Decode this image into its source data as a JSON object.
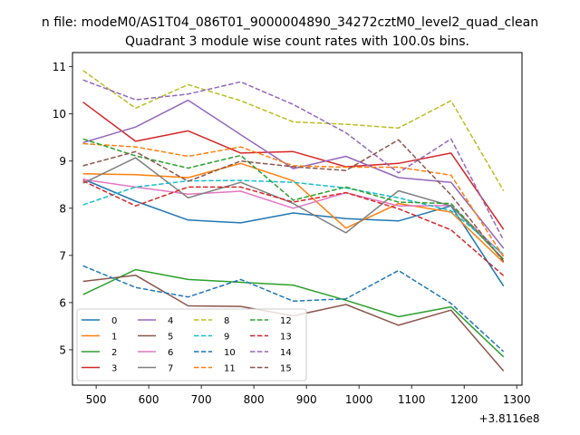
{
  "chart_data": {
    "type": "line",
    "suptitle": "n file: modeM0/AS1T04_086T01_9000004890_34272cztM0_level2_quad_clean",
    "title": "Quadrant 3 module wise count rates with 100.0s bins.",
    "xlabel": "",
    "ylabel": "",
    "x_offset_label": "+3.8116e8",
    "xlim": [
      455,
      1310
    ],
    "ylim": [
      4.25,
      11.3
    ],
    "xticks": [
      500,
      600,
      700,
      800,
      900,
      1000,
      1100,
      1200,
      1300
    ],
    "yticks": [
      5,
      6,
      7,
      8,
      9,
      10,
      11
    ],
    "x": [
      475,
      575,
      675,
      775,
      875,
      975,
      1075,
      1175,
      1275
    ],
    "legend_position": "lower-left",
    "series": [
      {
        "name": "0",
        "color": "#1f77b4",
        "dash": "solid",
        "values": [
          8.62,
          8.15,
          7.75,
          7.69,
          7.9,
          7.78,
          7.73,
          8.05,
          6.35
        ]
      },
      {
        "name": "1",
        "color": "#ff7f0e",
        "dash": "solid",
        "values": [
          8.73,
          8.71,
          8.65,
          8.95,
          8.58,
          7.58,
          8.1,
          7.92,
          6.85
        ]
      },
      {
        "name": "2",
        "color": "#2ca02c",
        "dash": "solid",
        "values": [
          6.17,
          6.7,
          6.49,
          6.43,
          6.37,
          6.05,
          5.7,
          5.91,
          4.85
        ]
      },
      {
        "name": "3",
        "color": "#d62728",
        "dash": "solid",
        "values": [
          10.25,
          9.42,
          9.64,
          9.17,
          9.2,
          8.88,
          8.95,
          9.17,
          7.55
        ]
      },
      {
        "name": "4",
        "color": "#9467bd",
        "dash": "solid",
        "values": [
          9.39,
          9.72,
          10.29,
          9.56,
          8.84,
          9.1,
          8.65,
          8.55,
          7.15
        ]
      },
      {
        "name": "5",
        "color": "#8c564b",
        "dash": "solid",
        "values": [
          6.45,
          6.58,
          5.93,
          5.92,
          5.72,
          5.96,
          5.52,
          5.84,
          4.55
        ]
      },
      {
        "name": "6",
        "color": "#e377c2",
        "dash": "solid",
        "values": [
          8.61,
          8.45,
          8.3,
          8.36,
          8.0,
          8.33,
          8.05,
          8.06,
          7.0
        ]
      },
      {
        "name": "7",
        "color": "#7f7f7f",
        "dash": "solid",
        "values": [
          8.53,
          9.07,
          8.22,
          8.55,
          8.1,
          7.48,
          8.37,
          8.05,
          6.92
        ]
      },
      {
        "name": "8",
        "color": "#bcbd22",
        "dash": "dashed",
        "values": [
          10.92,
          10.12,
          10.62,
          10.28,
          9.83,
          9.78,
          9.7,
          10.28,
          8.37
        ]
      },
      {
        "name": "9",
        "color": "#17becf",
        "dash": "dashed",
        "values": [
          8.07,
          8.45,
          8.58,
          8.59,
          8.55,
          8.43,
          8.22,
          7.95,
          7.02
        ]
      },
      {
        "name": "10",
        "color": "#1f77b4",
        "dash": "dashed",
        "values": [
          6.78,
          6.32,
          6.12,
          6.49,
          6.03,
          6.08,
          6.68,
          5.98,
          4.96
        ]
      },
      {
        "name": "11",
        "color": "#ff7f0e",
        "dash": "dashed",
        "values": [
          9.37,
          9.3,
          9.1,
          9.3,
          8.9,
          8.87,
          8.87,
          8.7,
          6.97
        ]
      },
      {
        "name": "12",
        "color": "#2ca02c",
        "dash": "dashed",
        "values": [
          9.47,
          9.11,
          8.85,
          9.12,
          8.17,
          8.45,
          8.13,
          8.1,
          6.9
        ]
      },
      {
        "name": "13",
        "color": "#d62728",
        "dash": "dashed",
        "values": [
          8.58,
          8.05,
          8.45,
          8.45,
          8.13,
          8.33,
          7.99,
          7.54,
          6.57
        ]
      },
      {
        "name": "14",
        "color": "#9467bd",
        "dash": "dashed",
        "values": [
          10.72,
          10.3,
          10.42,
          10.68,
          10.2,
          9.6,
          8.75,
          9.47,
          7.32
        ]
      },
      {
        "name": "15",
        "color": "#8c564b",
        "dash": "dashed",
        "values": [
          8.9,
          9.2,
          8.57,
          9.0,
          8.88,
          8.8,
          9.45,
          8.28,
          6.87
        ]
      }
    ]
  }
}
